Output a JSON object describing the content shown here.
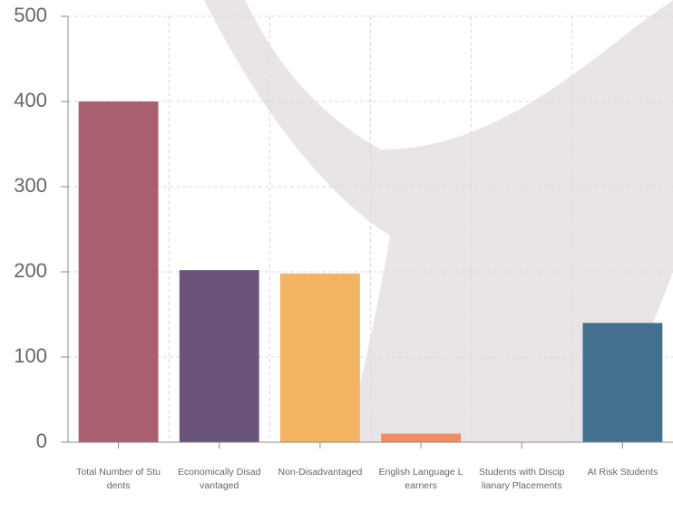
{
  "chart_data": {
    "type": "bar",
    "categories": [
      "Total Number of Students",
      "Economically Disadvantaged",
      "Non-Disadvantaged",
      "English Language Learners",
      "Students with Disciplianary Placements",
      "At Risk Students"
    ],
    "values": [
      400,
      202,
      198,
      10,
      0,
      140
    ],
    "colors": [
      "#a8606f",
      "#6a5479",
      "#f2b462",
      "#ee8d5d",
      "#ee8d5d",
      "#44708f"
    ],
    "ylim": [
      0,
      500
    ],
    "yticks": [
      0,
      100,
      200,
      300,
      400,
      500
    ],
    "grid": true
  }
}
